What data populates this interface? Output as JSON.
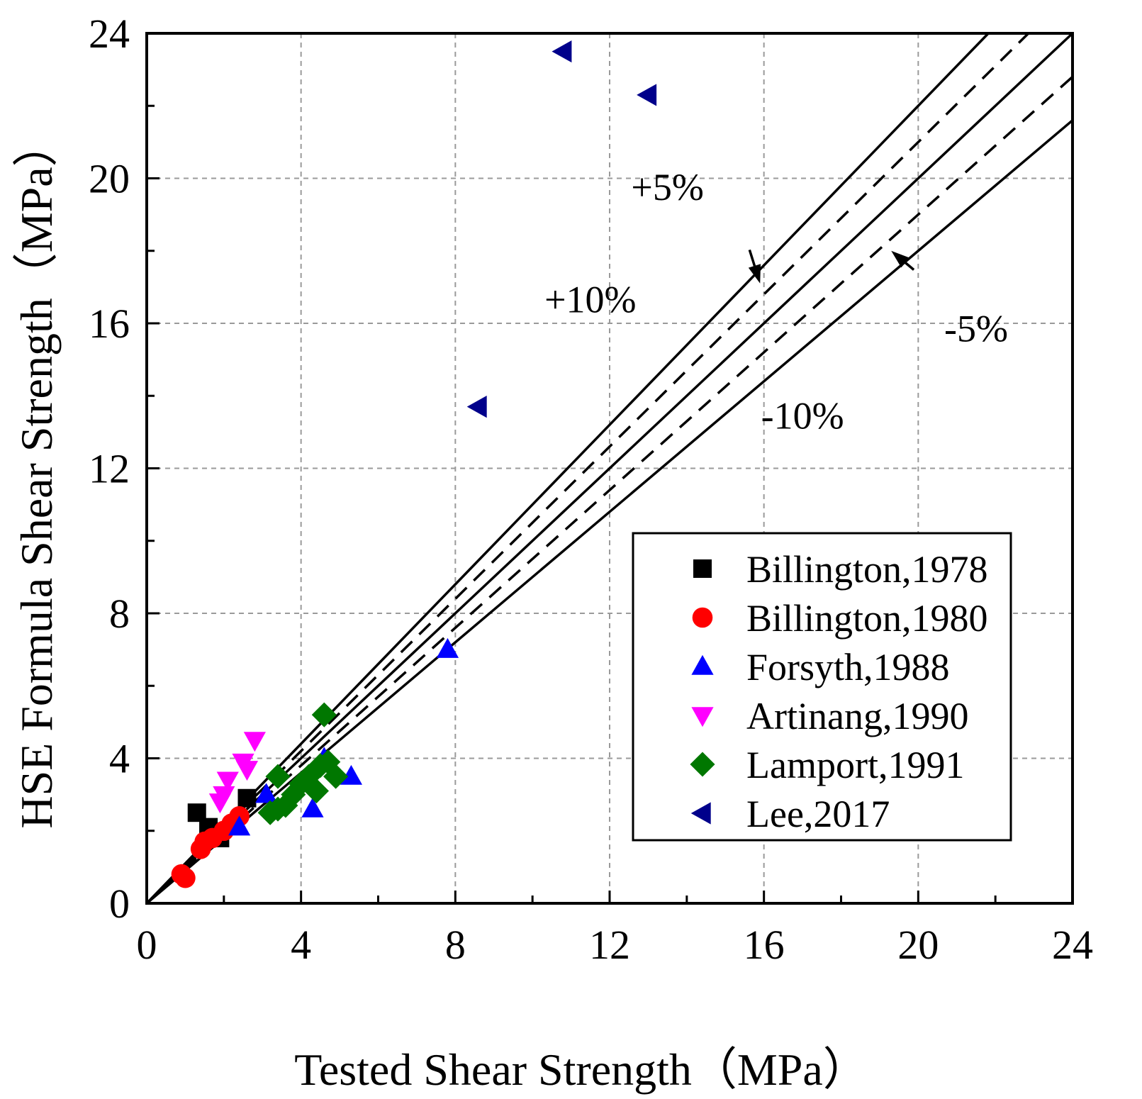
{
  "chart_data": {
    "type": "scatter",
    "title": "",
    "xlabel": "Tested Shear Strength（MPa）",
    "ylabel": "HSE  Formula Shear Strength（MPa）",
    "xlim": [
      0,
      24
    ],
    "ylim": [
      0,
      24
    ],
    "xticks": [
      0,
      4,
      8,
      12,
      16,
      20,
      24
    ],
    "yticks": [
      0,
      4,
      8,
      12,
      16,
      20,
      24
    ],
    "grid": true,
    "legend_position": "bottom-right",
    "reference_lines": [
      {
        "name": "+10%",
        "slope": 1.1,
        "style": "solid",
        "label": "+10%"
      },
      {
        "name": "+5%",
        "slope": 1.05,
        "style": "dashed",
        "label": "+5%"
      },
      {
        "name": "equal",
        "slope": 1.0,
        "style": "solid",
        "label": ""
      },
      {
        "name": "-5%",
        "slope": 0.95,
        "style": "dashed",
        "label": "-5%"
      },
      {
        "name": "-10%",
        "slope": 0.9,
        "style": "solid",
        "label": "-10%"
      }
    ],
    "series": [
      {
        "name": "Billington,1978",
        "marker": "square",
        "color": "#000000",
        "x": [
          1.3,
          1.6,
          1.9,
          2.6
        ],
        "y": [
          2.5,
          2.1,
          1.8,
          2.9
        ]
      },
      {
        "name": "Billington,1980",
        "marker": "circle",
        "color": "#ff0000",
        "x": [
          0.9,
          1.0,
          1.4,
          1.5,
          1.7,
          2.0,
          2.2,
          2.4
        ],
        "y": [
          0.8,
          0.7,
          1.5,
          1.7,
          1.8,
          2.0,
          2.2,
          2.4
        ]
      },
      {
        "name": "Forsyth,1988",
        "marker": "triangle-up",
        "color": "#0000ff",
        "x": [
          2.4,
          3.1,
          4.3,
          4.6,
          5.3,
          7.8
        ],
        "y": [
          2.1,
          3.0,
          2.6,
          4.0,
          3.5,
          7.0
        ]
      },
      {
        "name": "Artinang,1990",
        "marker": "triangle-down",
        "color": "#ff00ff",
        "x": [
          1.9,
          2.0,
          2.1,
          2.5,
          2.6,
          2.8
        ],
        "y": [
          2.8,
          3.0,
          3.4,
          3.9,
          3.7,
          4.5
        ]
      },
      {
        "name": "Lamport,1991",
        "marker": "diamond",
        "color": "#007700",
        "x": [
          3.2,
          3.4,
          3.6,
          3.8,
          4.0,
          4.2,
          4.4,
          4.5,
          4.7,
          4.9,
          3.4
        ],
        "y": [
          2.5,
          3.5,
          2.7,
          3.0,
          3.3,
          3.5,
          3.1,
          3.8,
          3.9,
          3.5,
          2.6
        ]
      },
      {
        "name": "Lamport,1991",
        "marker": "diamond",
        "color": "#007700",
        "x": [
          4.6
        ],
        "y": [
          5.2
        ]
      },
      {
        "name": " Lee,2017",
        "marker": "triangle-left",
        "color": "#00008b",
        "x": [
          10.8,
          13.0,
          8.6
        ],
        "y": [
          23.5,
          22.3,
          13.7
        ]
      }
    ],
    "legend": [
      {
        "label": "Billington,1978",
        "marker": "square",
        "color": "#000000"
      },
      {
        "label": "Billington,1980",
        "marker": "circle",
        "color": "#ff0000"
      },
      {
        "label": "Forsyth,1988",
        "marker": "triangle-up",
        "color": "#0000ff"
      },
      {
        "label": "Artinang,1990",
        "marker": "triangle-down",
        "color": "#ff00ff"
      },
      {
        "label": "Lamport,1991",
        "marker": "diamond",
        "color": "#007700"
      },
      {
        "label": " Lee,2017",
        "marker": "triangle-left",
        "color": "#00008b"
      }
    ],
    "annotations": [
      {
        "text": "+5%",
        "near_x": 13.5,
        "near_y": 19.4,
        "arrow_to": [
          15.9,
          17.1
        ]
      },
      {
        "text": "+10%",
        "near_x": 11.5,
        "near_y": 16.3
      },
      {
        "text": "-5%",
        "near_x": 21.5,
        "near_y": 15.5,
        "arrow_to": [
          19.3,
          18.0
        ]
      },
      {
        "text": "-10%",
        "near_x": 17.0,
        "near_y": 13.1
      }
    ]
  }
}
